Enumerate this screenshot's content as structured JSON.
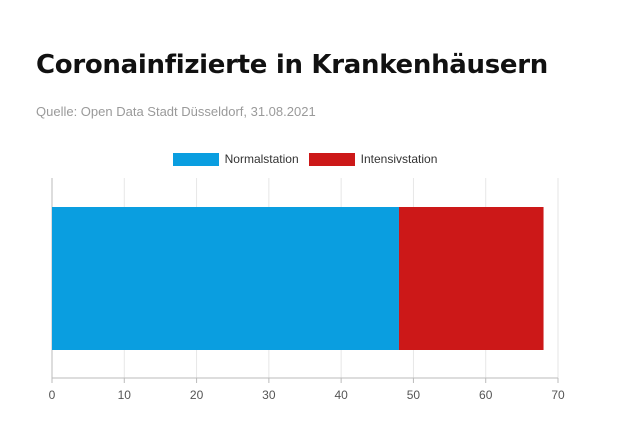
{
  "header": {
    "title": "Coronainfizierte in Krankenhäusern",
    "source": "Quelle: Open Data Stadt Düsseldorf, 31.08.2021"
  },
  "chart_data": {
    "type": "bar",
    "orientation": "horizontal",
    "stacked": true,
    "categories": [
      ""
    ],
    "series": [
      {
        "name": "Normalstation",
        "values": [
          48
        ],
        "color": "#0a9ee0"
      },
      {
        "name": "Intensivstation",
        "values": [
          20
        ],
        "color": "#cc1818"
      }
    ],
    "xlim": [
      0,
      70
    ],
    "xticks": [
      0,
      10,
      20,
      30,
      40,
      50,
      60,
      70
    ],
    "grid": true,
    "legend": "top-center"
  }
}
